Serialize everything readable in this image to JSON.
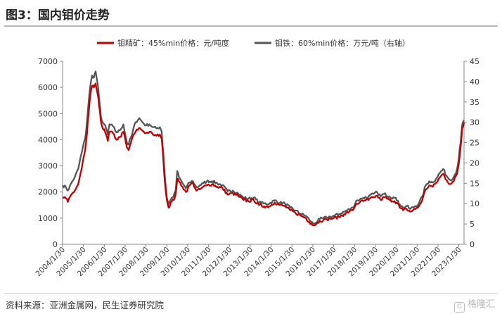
{
  "header": {
    "title": "图3：国内钼价走势"
  },
  "footer": {
    "source": "资料来源：亚洲金属网，民生证券研究院",
    "watermark": "格隆汇",
    "watermark_mark": "G"
  },
  "chart_data": {
    "type": "line",
    "title": "图3：国内钼价走势",
    "legend_position": "top",
    "grid": false,
    "x_ticks": [
      "2004/1/30",
      "2005/1/30",
      "2006/1/30",
      "2007/1/30",
      "2008/1/30",
      "2009/1/30",
      "2010/1/30",
      "2011/1/30",
      "2012/1/30",
      "2013/1/30",
      "2014/1/30",
      "2015/1/30",
      "2016/1/30",
      "2017/1/30",
      "2018/1/30",
      "2019/1/30",
      "2020/1/30",
      "2021/1/30",
      "2022/1/30",
      "2023/1/30"
    ],
    "y_left": {
      "min": 0,
      "max": 7000,
      "ticks": [
        0,
        1000,
        2000,
        3000,
        4000,
        5000,
        6000,
        7000
      ]
    },
    "y_right": {
      "min": 0,
      "max": 45,
      "ticks": [
        0,
        5,
        10,
        15,
        20,
        25,
        30,
        35,
        40,
        45
      ]
    },
    "series": [
      {
        "name": "钼精矿：45%min价格：元/吨度",
        "axis": "left",
        "color": "#c00000",
        "points": [
          [
            "2004-01",
            1800
          ],
          [
            "2004-03",
            1750
          ],
          [
            "2004-04",
            1620
          ],
          [
            "2004-06",
            1900
          ],
          [
            "2004-08",
            2050
          ],
          [
            "2004-10",
            2300
          ],
          [
            "2004-12",
            2900
          ],
          [
            "2005-02",
            3600
          ],
          [
            "2005-03",
            4200
          ],
          [
            "2005-04",
            5000
          ],
          [
            "2005-05",
            5700
          ],
          [
            "2005-06",
            6050
          ],
          [
            "2005-07",
            6000
          ],
          [
            "2005-08",
            6150
          ],
          [
            "2005-09",
            5800
          ],
          [
            "2005-10",
            5300
          ],
          [
            "2005-11",
            4700
          ],
          [
            "2005-12",
            4450
          ],
          [
            "2006-01",
            4400
          ],
          [
            "2006-02",
            4200
          ],
          [
            "2006-03",
            3950
          ],
          [
            "2006-04",
            4300
          ],
          [
            "2006-06",
            4250
          ],
          [
            "2006-08",
            4000
          ],
          [
            "2006-10",
            4100
          ],
          [
            "2006-12",
            4300
          ],
          [
            "2007-02",
            3700
          ],
          [
            "2007-03",
            3600
          ],
          [
            "2007-05",
            4050
          ],
          [
            "2007-07",
            4300
          ],
          [
            "2007-09",
            4450
          ],
          [
            "2007-11",
            4350
          ],
          [
            "2008-01",
            4250
          ],
          [
            "2008-03",
            4300
          ],
          [
            "2008-05",
            4200
          ],
          [
            "2008-07",
            4150
          ],
          [
            "2008-09",
            4200
          ],
          [
            "2008-10",
            4050
          ],
          [
            "2008-11",
            3200
          ],
          [
            "2008-12",
            2300
          ],
          [
            "2009-01",
            1700
          ],
          [
            "2009-02",
            1400
          ],
          [
            "2009-03",
            1550
          ],
          [
            "2009-04",
            1650
          ],
          [
            "2009-05",
            1700
          ],
          [
            "2009-06",
            1900
          ],
          [
            "2009-07",
            2500
          ],
          [
            "2009-08",
            2400
          ],
          [
            "2009-10",
            2200
          ],
          [
            "2009-12",
            2000
          ],
          [
            "2010-02",
            2250
          ],
          [
            "2010-04",
            2350
          ],
          [
            "2010-06",
            2050
          ],
          [
            "2010-08",
            2100
          ],
          [
            "2010-10",
            2200
          ],
          [
            "2010-12",
            2250
          ],
          [
            "2011-03",
            2300
          ],
          [
            "2011-06",
            2200
          ],
          [
            "2011-09",
            2150
          ],
          [
            "2011-12",
            1900
          ],
          [
            "2012-03",
            1950
          ],
          [
            "2012-06",
            1850
          ],
          [
            "2012-09",
            1700
          ],
          [
            "2012-12",
            1650
          ],
          [
            "2013-03",
            1700
          ],
          [
            "2013-06",
            1500
          ],
          [
            "2013-09",
            1450
          ],
          [
            "2013-12",
            1450
          ],
          [
            "2014-03",
            1600
          ],
          [
            "2014-06",
            1500
          ],
          [
            "2014-09",
            1450
          ],
          [
            "2014-12",
            1300
          ],
          [
            "2015-03",
            1200
          ],
          [
            "2015-06",
            1100
          ],
          [
            "2015-09",
            1000
          ],
          [
            "2015-11",
            850
          ],
          [
            "2015-12",
            800
          ],
          [
            "2016-01",
            730
          ],
          [
            "2016-03",
            780
          ],
          [
            "2016-05",
            900
          ],
          [
            "2016-07",
            920
          ],
          [
            "2016-09",
            950
          ],
          [
            "2016-11",
            980
          ],
          [
            "2017-01",
            1000
          ],
          [
            "2017-04",
            1050
          ],
          [
            "2017-07",
            1150
          ],
          [
            "2017-10",
            1250
          ],
          [
            "2017-12",
            1300
          ],
          [
            "2018-02",
            1550
          ],
          [
            "2018-04",
            1600
          ],
          [
            "2018-06",
            1650
          ],
          [
            "2018-09",
            1700
          ],
          [
            "2018-12",
            1800
          ],
          [
            "2019-02",
            1850
          ],
          [
            "2019-04",
            1700
          ],
          [
            "2019-06",
            1800
          ],
          [
            "2019-09",
            1700
          ],
          [
            "2019-12",
            1650
          ],
          [
            "2020-02",
            1550
          ],
          [
            "2020-03",
            1400
          ],
          [
            "2020-05",
            1300
          ],
          [
            "2020-07",
            1350
          ],
          [
            "2020-09",
            1250
          ],
          [
            "2020-12",
            1350
          ],
          [
            "2021-02",
            1450
          ],
          [
            "2021-04",
            1700
          ],
          [
            "2021-06",
            2100
          ],
          [
            "2021-08",
            2250
          ],
          [
            "2021-10",
            2200
          ],
          [
            "2021-12",
            2350
          ],
          [
            "2022-02",
            2550
          ],
          [
            "2022-04",
            2700
          ],
          [
            "2022-06",
            2450
          ],
          [
            "2022-08",
            2300
          ],
          [
            "2022-10",
            2400
          ],
          [
            "2022-12",
            2700
          ],
          [
            "2023-01",
            3100
          ],
          [
            "2023-02",
            3700
          ],
          [
            "2023-03",
            4450
          ],
          [
            "2023-04",
            4650
          ]
        ]
      },
      {
        "name": "钼铁：60%min价格：万元/吨（右轴）",
        "axis": "right",
        "color": "#555555",
        "points": [
          [
            "2004-01",
            14.5
          ],
          [
            "2004-03",
            14
          ],
          [
            "2004-04",
            13.2
          ],
          [
            "2004-06",
            15
          ],
          [
            "2004-08",
            16.5
          ],
          [
            "2004-10",
            18.5
          ],
          [
            "2004-12",
            22.5
          ],
          [
            "2005-02",
            26
          ],
          [
            "2005-03",
            30
          ],
          [
            "2005-04",
            35
          ],
          [
            "2005-05",
            39
          ],
          [
            "2005-06",
            41.5
          ],
          [
            "2005-07",
            41
          ],
          [
            "2005-08",
            42.5
          ],
          [
            "2005-09",
            40
          ],
          [
            "2005-10",
            36
          ],
          [
            "2005-11",
            31.5
          ],
          [
            "2005-12",
            30
          ],
          [
            "2006-01",
            29.5
          ],
          [
            "2006-02",
            28.5
          ],
          [
            "2006-03",
            27
          ],
          [
            "2006-04",
            29.5
          ],
          [
            "2006-06",
            29
          ],
          [
            "2006-08",
            27.5
          ],
          [
            "2006-10",
            28
          ],
          [
            "2006-12",
            29.5
          ],
          [
            "2007-02",
            25
          ],
          [
            "2007-03",
            24.5
          ],
          [
            "2007-05",
            27
          ],
          [
            "2007-07",
            30
          ],
          [
            "2007-09",
            31
          ],
          [
            "2007-11",
            30
          ],
          [
            "2008-01",
            29.2
          ],
          [
            "2008-03",
            29.5
          ],
          [
            "2008-05",
            28.8
          ],
          [
            "2008-07",
            28.5
          ],
          [
            "2008-09",
            28.8
          ],
          [
            "2008-10",
            27.8
          ],
          [
            "2008-11",
            22
          ],
          [
            "2008-12",
            16
          ],
          [
            "2009-01",
            11.5
          ],
          [
            "2009-02",
            10
          ],
          [
            "2009-03",
            10.8
          ],
          [
            "2009-04",
            11.5
          ],
          [
            "2009-05",
            12
          ],
          [
            "2009-06",
            13
          ],
          [
            "2009-07",
            18
          ],
          [
            "2009-08",
            16.5
          ],
          [
            "2009-10",
            15
          ],
          [
            "2009-12",
            13.8
          ],
          [
            "2010-02",
            15.2
          ],
          [
            "2010-04",
            15.5
          ],
          [
            "2010-06",
            14
          ],
          [
            "2010-08",
            14.5
          ],
          [
            "2010-10",
            15
          ],
          [
            "2010-12",
            15.5
          ],
          [
            "2011-03",
            15.5
          ],
          [
            "2011-06",
            15
          ],
          [
            "2011-09",
            14.5
          ],
          [
            "2011-12",
            13
          ],
          [
            "2012-03",
            13.2
          ],
          [
            "2012-06",
            12.5
          ],
          [
            "2012-09",
            11.5
          ],
          [
            "2012-12",
            11.2
          ],
          [
            "2013-03",
            11.5
          ],
          [
            "2013-06",
            10.3
          ],
          [
            "2013-09",
            10
          ],
          [
            "2013-12",
            10
          ],
          [
            "2014-03",
            10.8
          ],
          [
            "2014-06",
            10.2
          ],
          [
            "2014-09",
            10
          ],
          [
            "2014-12",
            9
          ],
          [
            "2015-03",
            8.3
          ],
          [
            "2015-06",
            7.5
          ],
          [
            "2015-09",
            7
          ],
          [
            "2015-11",
            6
          ],
          [
            "2015-12",
            5.6
          ],
          [
            "2016-01",
            5.1
          ],
          [
            "2016-03",
            5.4
          ],
          [
            "2016-05",
            6.2
          ],
          [
            "2016-07",
            6.4
          ],
          [
            "2016-09",
            6.6
          ],
          [
            "2016-11",
            6.8
          ],
          [
            "2017-01",
            7
          ],
          [
            "2017-04",
            7.4
          ],
          [
            "2017-07",
            8
          ],
          [
            "2017-10",
            8.6
          ],
          [
            "2017-12",
            9
          ],
          [
            "2018-02",
            10.7
          ],
          [
            "2018-04",
            11
          ],
          [
            "2018-06",
            11.4
          ],
          [
            "2018-09",
            11.7
          ],
          [
            "2018-12",
            12.4
          ],
          [
            "2019-02",
            12.8
          ],
          [
            "2019-04",
            11.8
          ],
          [
            "2019-06",
            12.4
          ],
          [
            "2019-09",
            11.8
          ],
          [
            "2019-12",
            11.4
          ],
          [
            "2020-02",
            10.7
          ],
          [
            "2020-03",
            9.8
          ],
          [
            "2020-05",
            9
          ],
          [
            "2020-07",
            9.4
          ],
          [
            "2020-09",
            8.7
          ],
          [
            "2020-12",
            9.4
          ],
          [
            "2021-02",
            10
          ],
          [
            "2021-04",
            11.8
          ],
          [
            "2021-06",
            14.5
          ],
          [
            "2021-08",
            15.5
          ],
          [
            "2021-10",
            15.2
          ],
          [
            "2021-12",
            16.2
          ],
          [
            "2022-02",
            17.5
          ],
          [
            "2022-04",
            18.5
          ],
          [
            "2022-06",
            16.8
          ],
          [
            "2022-08",
            15.8
          ],
          [
            "2022-10",
            16.5
          ],
          [
            "2022-12",
            18.6
          ],
          [
            "2023-01",
            21.2
          ],
          [
            "2023-02",
            25
          ],
          [
            "2023-03",
            29.5
          ],
          [
            "2023-04",
            30.5
          ]
        ]
      }
    ]
  }
}
